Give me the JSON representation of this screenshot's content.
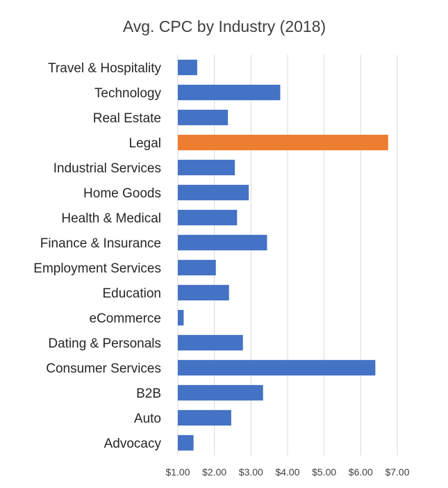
{
  "chart_data": {
    "type": "bar",
    "orientation": "horizontal",
    "title": "Avg. CPC by Industry (2018)",
    "xlabel": "",
    "ylabel": "",
    "categories": [
      "Travel & Hospitality",
      "Technology",
      "Real Estate",
      "Legal",
      "Industrial Services",
      "Home Goods",
      "Health & Medical",
      "Finance & Insurance",
      "Employment Services",
      "Education",
      "eCommerce",
      "Dating & Personals",
      "Consumer Services",
      "B2B",
      "Auto",
      "Advocacy"
    ],
    "values": [
      1.53,
      3.8,
      2.37,
      6.75,
      2.56,
      2.94,
      2.62,
      3.44,
      2.04,
      2.4,
      1.16,
      2.78,
      6.4,
      3.33,
      2.46,
      1.43
    ],
    "bar_colors": [
      "#4472c4",
      "#4472c4",
      "#4472c4",
      "#ed7d31",
      "#4472c4",
      "#4472c4",
      "#4472c4",
      "#4472c4",
      "#4472c4",
      "#4472c4",
      "#4472c4",
      "#4472c4",
      "#4472c4",
      "#4472c4",
      "#4472c4",
      "#4472c4"
    ],
    "xlim": [
      1,
      7
    ],
    "xticks": [
      1,
      2,
      3,
      4,
      5,
      6,
      7
    ],
    "xtick_labels": [
      "$1.00",
      "$2.00",
      "$3.00",
      "$4.00",
      "$5.00",
      "$6.00",
      "$7.00"
    ],
    "grid": true,
    "legend": "none"
  }
}
